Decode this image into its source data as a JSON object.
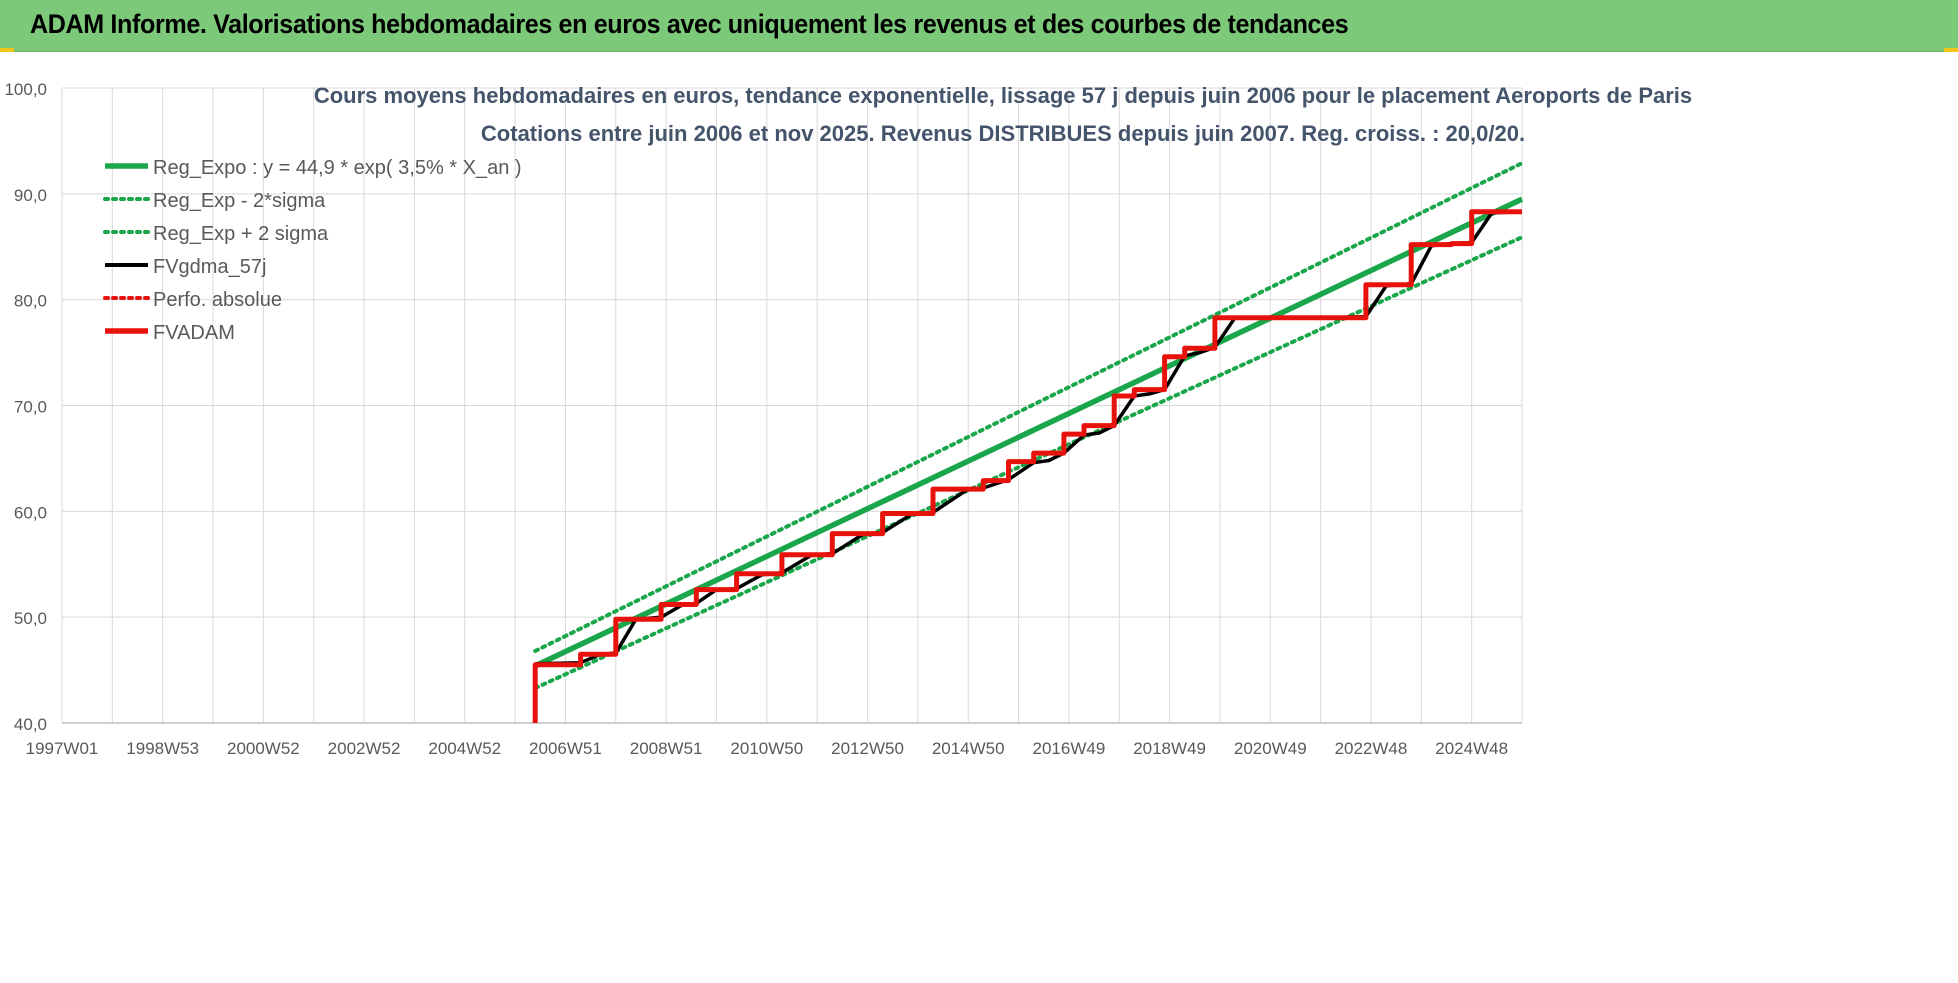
{
  "header": {
    "title": "ADAM Informe. Valorisations hebdomadaires en euros avec uniquement les revenus et des courbes de tendances"
  },
  "colors": {
    "header_bg": "#7dc97a",
    "reg": "#1aa64a",
    "band": "#1aa64a",
    "fvgdma": "#000000",
    "perfo": "#e8120c",
    "fvadam": "#e8120c",
    "grid": "#d9d9d9"
  },
  "chart_data": {
    "type": "line",
    "title_line1": "Cours moyens hebdomadaires en euros, tendance exponentielle, lissage 57 j depuis juin 2006 pour le placement  Aeroports de Paris",
    "title_line2": "Cotations entre juin 2006 et nov 2025.  Revenus DISTRIBUES depuis juin 2007.  Reg. croiss. : 20,0/20.",
    "ylim": [
      40,
      100
    ],
    "y_ticks": [
      "40,0",
      "50,0",
      "60,0",
      "70,0",
      "80,0",
      "90,0",
      "100,0"
    ],
    "x_range": [
      1997.0,
      2026.0
    ],
    "x_ticks": [
      {
        "label": "1997W01",
        "x": 1997.0
      },
      {
        "label": "1998W53",
        "x": 1999.0
      },
      {
        "label": "2000W52",
        "x": 2001.0
      },
      {
        "label": "2002W52",
        "x": 2003.0
      },
      {
        "label": "2004W52",
        "x": 2005.0
      },
      {
        "label": "2006W51",
        "x": 2007.0
      },
      {
        "label": "2008W51",
        "x": 2009.0
      },
      {
        "label": "2010W50",
        "x": 2011.0
      },
      {
        "label": "2012W50",
        "x": 2013.0
      },
      {
        "label": "2014W50",
        "x": 2015.0
      },
      {
        "label": "2016W49",
        "x": 2017.0
      },
      {
        "label": "2018W49",
        "x": 2019.0
      },
      {
        "label": "2020W49",
        "x": 2021.0
      },
      {
        "label": "2022W48",
        "x": 2023.0
      },
      {
        "label": "2024W48",
        "x": 2025.0
      }
    ],
    "grid": true,
    "legend_position": "top-left",
    "series": [
      {
        "name": "Reg_Expo : y = 44,9 * exp( 3,5% *  X_an )",
        "style": "solid-thick",
        "color": "#1aa64a",
        "x": [
          2006.4,
          2026.0
        ],
        "y": [
          45.4,
          89.5
        ]
      },
      {
        "name": "Reg_Exp - 2*sigma",
        "style": "dotted",
        "color": "#1aa64a",
        "x": [
          2006.4,
          2026.0
        ],
        "y": [
          43.3,
          85.9
        ]
      },
      {
        "name": "Reg_Exp + 2 sigma",
        "style": "dotted",
        "color": "#1aa64a",
        "x": [
          2006.4,
          2026.0
        ],
        "y": [
          46.8,
          92.9
        ]
      },
      {
        "name": "FVgdma_57j",
        "style": "solid",
        "color": "#000000",
        "x": [
          2006.4,
          2007.3,
          2007.7,
          2008.0,
          2008.4,
          2008.9,
          2009.3,
          2009.6,
          2010.0,
          2010.4,
          2010.9,
          2011.3,
          2011.9,
          2012.3,
          2012.9,
          2013.3,
          2013.9,
          2014.3,
          2015.0,
          2015.3,
          2015.8,
          2016.3,
          2016.6,
          2016.9,
          2017.3,
          2017.6,
          2017.9,
          2018.3,
          2018.6,
          2018.9,
          2019.3,
          2019.6,
          2019.9,
          2020.3,
          2021.0,
          2022.0,
          2022.9,
          2023.3,
          2023.8,
          2024.2,
          2024.6,
          2025.0,
          2025.4,
          2026.0
        ],
        "y": [
          45.6,
          45.7,
          46.5,
          46.6,
          49.8,
          50.0,
          51.1,
          51.3,
          52.6,
          52.7,
          54.0,
          54.2,
          55.9,
          56.0,
          57.8,
          58.0,
          59.8,
          59.9,
          62.1,
          62.2,
          63.0,
          64.6,
          64.8,
          65.5,
          67.2,
          67.4,
          68.1,
          70.9,
          71.1,
          71.5,
          74.7,
          75.0,
          75.5,
          78.3,
          78.3,
          78.3,
          78.4,
          81.3,
          81.5,
          85.1,
          85.3,
          85.4,
          88.2,
          88.3
        ]
      },
      {
        "name": "Perfo. absolue",
        "style": "dotted",
        "color": "#e8120c",
        "x": [],
        "y": []
      },
      {
        "name": "FVADAM",
        "style": "solid-thick",
        "color": "#e8120c",
        "x": [
          2006.4,
          2006.4,
          2007.3,
          2007.3,
          2008.0,
          2008.0,
          2008.9,
          2008.9,
          2009.6,
          2009.6,
          2010.4,
          2010.4,
          2011.3,
          2011.3,
          2012.3,
          2012.3,
          2013.3,
          2013.3,
          2014.3,
          2014.3,
          2015.3,
          2015.3,
          2015.8,
          2015.8,
          2016.3,
          2016.3,
          2016.9,
          2016.9,
          2017.3,
          2017.3,
          2017.9,
          2017.9,
          2018.3,
          2018.3,
          2018.9,
          2018.9,
          2019.3,
          2019.3,
          2019.9,
          2019.9,
          2022.9,
          2022.9,
          2023.8,
          2023.8,
          2024.6,
          2024.6,
          2025.0,
          2025.0,
          2026.0
        ],
        "y": [
          40.0,
          45.5,
          45.5,
          46.5,
          46.5,
          49.8,
          49.8,
          51.2,
          51.2,
          52.6,
          52.6,
          54.1,
          54.1,
          55.9,
          55.9,
          57.9,
          57.9,
          59.8,
          59.8,
          62.1,
          62.1,
          62.9,
          62.9,
          64.7,
          64.7,
          65.5,
          65.5,
          67.3,
          67.3,
          68.1,
          68.1,
          70.9,
          70.9,
          71.5,
          71.5,
          74.6,
          74.6,
          75.4,
          75.4,
          78.3,
          78.3,
          81.4,
          81.4,
          85.2,
          85.2,
          85.3,
          85.3,
          88.3,
          88.3
        ]
      }
    ]
  }
}
